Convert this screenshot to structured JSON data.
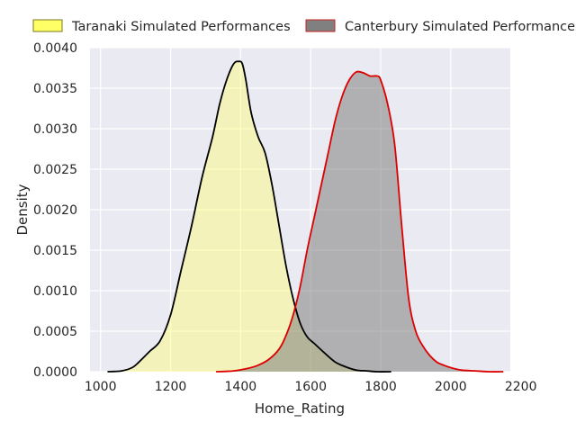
{
  "chart_data": {
    "type": "area",
    "title": "",
    "xlabel": "Home_Rating",
    "ylabel": "Density",
    "xlim": [
      970,
      2170
    ],
    "ylim": [
      0,
      0.004
    ],
    "xticks": [
      "1000",
      "1200",
      "1400",
      "1600",
      "1800",
      "2000",
      "2200"
    ],
    "xtick_values": [
      1000,
      1200,
      1400,
      1600,
      1800,
      2000,
      2200
    ],
    "yticks": [
      "0.0000",
      "0.0005",
      "0.0010",
      "0.0015",
      "0.0020",
      "0.0025",
      "0.0030",
      "0.0035",
      "0.0040"
    ],
    "ytick_values": [
      0,
      0.0005,
      0.001,
      0.0015,
      0.002,
      0.0025,
      0.003,
      0.0035,
      0.004
    ],
    "grid": true,
    "legend_position": "top",
    "series": [
      {
        "name": "Taranaki Simulated Performances",
        "fill_color": "#ffff66",
        "fill_opacity": 0.4,
        "legend_fill": "#ffff66",
        "legend_edge": "#7a7a20",
        "line_color": "#000000",
        "x": [
          1020,
          1060,
          1090,
          1110,
          1140,
          1170,
          1200,
          1230,
          1260,
          1290,
          1320,
          1340,
          1360,
          1380,
          1395,
          1405,
          1415,
          1430,
          1450,
          1470,
          1490,
          1510,
          1530,
          1550,
          1570,
          1590,
          1610,
          1640,
          1670,
          1700,
          1730,
          1760,
          1790,
          1830
        ],
        "y": [
          0,
          1e-05,
          5e-05,
          0.00012,
          0.00025,
          0.00038,
          0.0007,
          0.00125,
          0.0018,
          0.0024,
          0.0029,
          0.0033,
          0.0036,
          0.0038,
          0.00383,
          0.0038,
          0.0036,
          0.0032,
          0.0029,
          0.0027,
          0.0023,
          0.0018,
          0.0013,
          0.0009,
          0.0006,
          0.00043,
          0.00035,
          0.00023,
          0.00012,
          6e-05,
          2e-05,
          1e-05,
          0,
          0
        ]
      },
      {
        "name": "Canterbury Simulated Performances",
        "fill_color": "#808080",
        "fill_opacity": 0.55,
        "legend_fill": "#808080",
        "legend_edge": "#cc2222",
        "line_color": "#dd0000",
        "x": [
          1330,
          1380,
          1420,
          1450,
          1480,
          1510,
          1530,
          1550,
          1570,
          1590,
          1610,
          1630,
          1650,
          1670,
          1690,
          1710,
          1730,
          1750,
          1770,
          1790,
          1800,
          1820,
          1840,
          1860,
          1880,
          1900,
          1920,
          1940,
          1960,
          1980,
          2000,
          2030,
          2070,
          2110,
          2150
        ],
        "y": [
          0,
          1e-05,
          4e-05,
          8e-05,
          0.00015,
          0.00028,
          0.00045,
          0.0007,
          0.00105,
          0.0015,
          0.0019,
          0.0023,
          0.0027,
          0.0031,
          0.0034,
          0.0036,
          0.0037,
          0.00369,
          0.00365,
          0.00365,
          0.0036,
          0.0033,
          0.0028,
          0.0018,
          0.0009,
          0.0005,
          0.00032,
          0.0002,
          0.00012,
          8e-05,
          5e-05,
          2e-05,
          1e-05,
          0,
          0
        ]
      }
    ]
  }
}
